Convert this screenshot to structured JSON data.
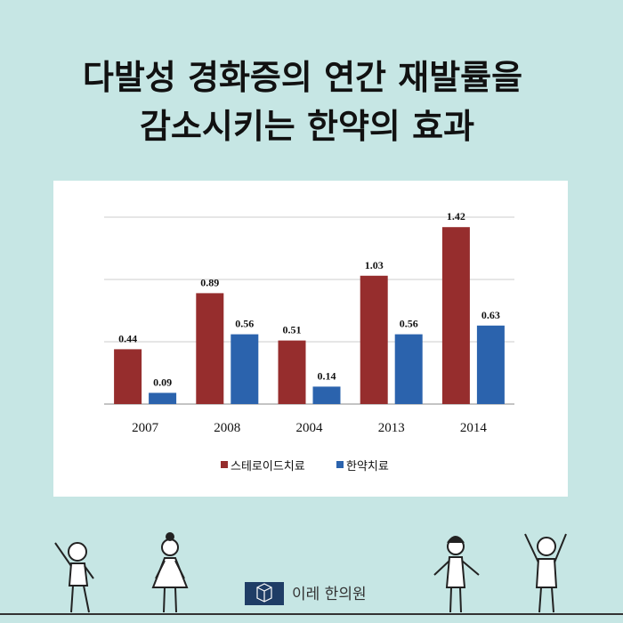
{
  "chart_data": {
    "type": "bar",
    "title": [
      "다발성 경화증의 연간 재발률을",
      "감소시키는 한약의 효과"
    ],
    "categories": [
      "2007",
      "2008",
      "2004",
      "2013",
      "2014"
    ],
    "series": [
      {
        "name": "스테로이드치료",
        "color": "#962d2d",
        "values": [
          0.44,
          0.89,
          0.51,
          1.03,
          1.42
        ]
      },
      {
        "name": "한약치료",
        "color": "#2b63ad",
        "values": [
          0.09,
          0.56,
          0.14,
          0.56,
          0.63
        ]
      }
    ],
    "ylim": [
      0,
      1.5
    ],
    "yticks": [
      0,
      0.5,
      1,
      1.5
    ],
    "grid": true
  },
  "footer": {
    "brand": "이레 한의원"
  }
}
